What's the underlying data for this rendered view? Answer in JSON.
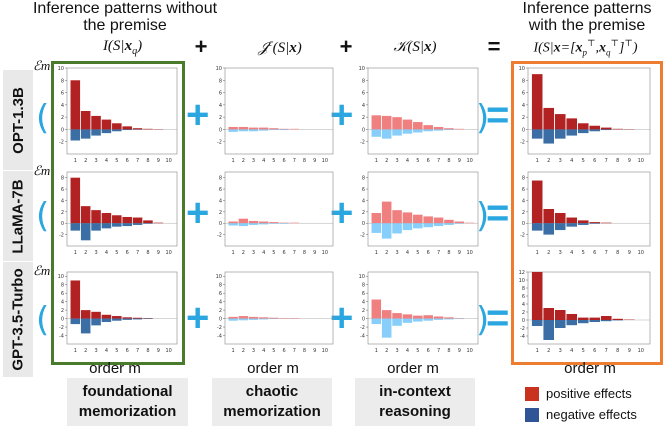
{
  "headers": {
    "left": "Inference patterns without the premise",
    "right": "Inference patterns with the premise"
  },
  "formulas": {
    "col1": "I(S|x_q)",
    "col2": "J^c(S|x)",
    "col3": "K(S|x)",
    "col4": "I(S|x=[x_p^T, x_q^T]^T)"
  },
  "operators": {
    "plus1": "+",
    "plus2": "+",
    "equals": "="
  },
  "rows": [
    {
      "label": "OPT-1.3B"
    },
    {
      "label": "LLaMA-7B"
    },
    {
      "label": "GPT-3.5-Turbo"
    }
  ],
  "em_label": "ℰm",
  "axis_label": "order m",
  "captions": [
    "foundational memorization",
    "chaotic memorization",
    "in-context reasoning"
  ],
  "legend": [
    {
      "label": "positive effects",
      "color": "#c8321e"
    },
    {
      "label": "negative effects",
      "color": "#2f5597"
    }
  ],
  "colors": {
    "pos_dark": "#b22222",
    "neg_dark": "#3a6ea5",
    "pos_light": "#f08080",
    "neg_light": "#87cefa",
    "box_green": "#4a7a2b",
    "box_orange": "#ed7d31",
    "accent": "#2aa7e0"
  },
  "chart_data": [
    {
      "type": "bar",
      "row": "OPT-1.3B",
      "panel": "I(S|x_q)",
      "x": [
        1,
        2,
        3,
        4,
        5,
        6,
        7,
        8,
        9,
        10
      ],
      "pos": [
        8,
        3,
        2.2,
        1.6,
        1,
        0.5,
        0.2,
        0.1,
        0.05,
        0
      ],
      "neg": [
        -1.8,
        -1.5,
        -1,
        -0.6,
        -0.3,
        -0.1,
        -0.05,
        0,
        0,
        0
      ],
      "ylim": [
        -4,
        10
      ],
      "yticks": [
        -2,
        0,
        2,
        4,
        6,
        8,
        10
      ],
      "style": "dark"
    },
    {
      "type": "bar",
      "row": "OPT-1.3B",
      "panel": "J^c(S|x)",
      "x": [
        1,
        2,
        3,
        4,
        5,
        6,
        7,
        8,
        9,
        10
      ],
      "pos": [
        0.4,
        0.4,
        0.3,
        0.3,
        0.2,
        0.1,
        0.1,
        0,
        0,
        0
      ],
      "neg": [
        -0.4,
        -0.3,
        -0.3,
        -0.2,
        -0.1,
        -0.1,
        0,
        0,
        0,
        0
      ],
      "ylim": [
        -4,
        10
      ],
      "yticks": [
        -2,
        0,
        2,
        4,
        6,
        8,
        10
      ],
      "style": "light"
    },
    {
      "type": "bar",
      "row": "OPT-1.3B",
      "panel": "K(S|x)",
      "x": [
        1,
        2,
        3,
        4,
        5,
        6,
        7,
        8,
        9,
        10
      ],
      "pos": [
        2.3,
        2.2,
        2,
        1.6,
        1.2,
        0.7,
        0.4,
        0.2,
        0.1,
        0
      ],
      "neg": [
        -1.2,
        -1.5,
        -1,
        -0.7,
        -0.5,
        -0.3,
        -0.2,
        -0.1,
        0,
        0
      ],
      "ylim": [
        -4,
        10
      ],
      "yticks": [
        -2,
        0,
        2,
        4,
        6,
        8,
        10
      ],
      "style": "light"
    },
    {
      "type": "bar",
      "row": "OPT-1.3B",
      "panel": "I(S|x)",
      "x": [
        1,
        2,
        3,
        4,
        5,
        6,
        7,
        8,
        9,
        10
      ],
      "pos": [
        9,
        3.5,
        2.5,
        1.8,
        1,
        0.6,
        0.3,
        0.1,
        0.05,
        0
      ],
      "neg": [
        -1.5,
        -2.3,
        -1.5,
        -1,
        -0.6,
        -0.3,
        -0.1,
        0,
        0,
        0
      ],
      "ylim": [
        -4,
        10
      ],
      "yticks": [
        -2,
        0,
        2,
        4,
        6,
        8,
        10
      ],
      "style": "dark"
    },
    {
      "type": "bar",
      "row": "LLaMA-7B",
      "panel": "I(S|x_q)",
      "x": [
        1,
        2,
        3,
        4,
        5,
        6,
        7,
        8,
        9,
        10
      ],
      "pos": [
        8,
        3,
        2.3,
        1.8,
        1.4,
        1.1,
        1,
        0.5,
        0.1,
        0
      ],
      "neg": [
        -1.3,
        -3,
        -1.3,
        -0.9,
        -0.6,
        -0.5,
        -0.3,
        -0.1,
        0,
        0
      ],
      "ylim": [
        -4,
        9
      ],
      "yticks": [
        -2,
        0,
        2,
        4,
        6,
        8
      ],
      "style": "dark"
    },
    {
      "type": "bar",
      "row": "LLaMA-7B",
      "panel": "J^c(S|x)",
      "x": [
        1,
        2,
        3,
        4,
        5,
        6,
        7,
        8,
        9,
        10
      ],
      "pos": [
        0.3,
        0.8,
        0.4,
        0.3,
        0.2,
        0.1,
        0.1,
        0,
        0,
        0
      ],
      "neg": [
        -0.4,
        -0.5,
        -0.3,
        -0.2,
        -0.1,
        -0.1,
        0,
        0,
        0,
        0
      ],
      "ylim": [
        -4,
        9
      ],
      "yticks": [
        -2,
        0,
        2,
        4,
        6,
        8
      ],
      "style": "light"
    },
    {
      "type": "bar",
      "row": "LLaMA-7B",
      "panel": "K(S|x)",
      "x": [
        1,
        2,
        3,
        4,
        5,
        6,
        7,
        8,
        9,
        10
      ],
      "pos": [
        1.8,
        3.8,
        2.3,
        1.9,
        1.5,
        1.2,
        1,
        0.6,
        0.3,
        0.1
      ],
      "neg": [
        -1.7,
        -2.7,
        -1.8,
        -1.2,
        -0.9,
        -0.7,
        -0.5,
        -0.3,
        -0.1,
        0
      ],
      "ylim": [
        -4,
        9
      ],
      "yticks": [
        -2,
        0,
        2,
        4,
        6,
        8
      ],
      "style": "light"
    },
    {
      "type": "bar",
      "row": "LLaMA-7B",
      "panel": "I(S|x)",
      "x": [
        1,
        2,
        3,
        4,
        5,
        6,
        7,
        8,
        9,
        10
      ],
      "pos": [
        7.5,
        2.5,
        1.8,
        1,
        0.5,
        0.2,
        0.1,
        0,
        0,
        0
      ],
      "neg": [
        -1.3,
        -2,
        -1.2,
        -0.6,
        -0.3,
        -0.1,
        0,
        0,
        0,
        0
      ],
      "ylim": [
        -4,
        9
      ],
      "yticks": [
        -2,
        0,
        2,
        4,
        6,
        8
      ],
      "style": "dark"
    },
    {
      "type": "bar",
      "row": "GPT-3.5-Turbo",
      "panel": "I(S|x_q)",
      "x": [
        1,
        2,
        3,
        4,
        5,
        6,
        7,
        8,
        9,
        10
      ],
      "pos": [
        9,
        2,
        1.6,
        0.9,
        0.6,
        0.3,
        0.2,
        0.1,
        0,
        0
      ],
      "neg": [
        -1.3,
        -3.5,
        -1.6,
        -0.8,
        -0.5,
        -0.3,
        -0.2,
        -0.1,
        0,
        0
      ],
      "ylim": [
        -6,
        11
      ],
      "yticks": [
        -4,
        -2,
        0,
        2,
        4,
        6,
        8,
        10
      ],
      "style": "dark"
    },
    {
      "type": "bar",
      "row": "GPT-3.5-Turbo",
      "panel": "J^c(S|x)",
      "x": [
        1,
        2,
        3,
        4,
        5,
        6,
        7,
        8,
        9,
        10
      ],
      "pos": [
        0.4,
        0.6,
        0.4,
        0.3,
        0.2,
        0.1,
        0.1,
        0,
        0,
        0
      ],
      "neg": [
        -0.5,
        -0.4,
        -0.3,
        -0.2,
        -0.1,
        0,
        0,
        0,
        0,
        0
      ],
      "ylim": [
        -6,
        11
      ],
      "yticks": [
        -4,
        -2,
        0,
        2,
        4,
        6,
        8,
        10
      ],
      "style": "light"
    },
    {
      "type": "bar",
      "row": "GPT-3.5-Turbo",
      "panel": "K(S|x)",
      "x": [
        1,
        2,
        3,
        4,
        5,
        6,
        7,
        8,
        9,
        10
      ],
      "pos": [
        4.5,
        2,
        1.3,
        1,
        0.7,
        0.8,
        0.5,
        0.3,
        0.1,
        0
      ],
      "neg": [
        -1.3,
        -4.5,
        -1.7,
        -1,
        -0.7,
        -0.5,
        -0.3,
        -0.2,
        -0.1,
        0
      ],
      "ylim": [
        -6,
        11
      ],
      "yticks": [
        -4,
        -2,
        0,
        2,
        4,
        6,
        8,
        10
      ],
      "style": "light"
    },
    {
      "type": "bar",
      "row": "GPT-3.5-Turbo",
      "panel": "I(S|x)",
      "x": [
        1,
        2,
        3,
        4,
        5,
        6,
        7,
        8,
        9,
        10
      ],
      "pos": [
        12,
        3,
        2.5,
        1.5,
        0.6,
        0.6,
        1,
        0.3,
        0.1,
        0
      ],
      "neg": [
        -1.5,
        -5,
        -2,
        -1.3,
        -0.8,
        -0.5,
        -0.3,
        -0.1,
        0,
        0
      ],
      "ylim": [
        -6,
        12
      ],
      "yticks": [
        -4,
        -2,
        0,
        2,
        4,
        6,
        8,
        10,
        12
      ],
      "style": "dark"
    }
  ]
}
